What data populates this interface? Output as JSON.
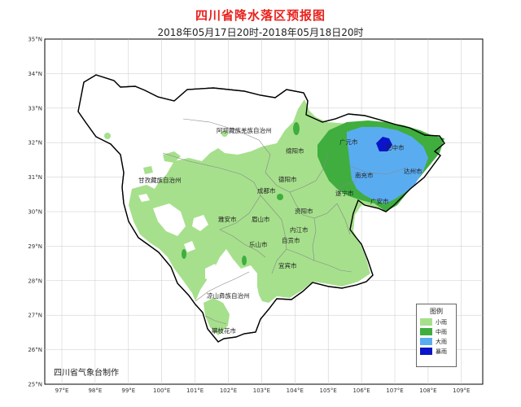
{
  "title": "四川省降水落区预报图",
  "subtitle": "2018年05月17日20时-2018年05月18日20时",
  "producer": "四川省气象台制作",
  "legend": {
    "title": "图例",
    "items": [
      {
        "label": "小雨",
        "color": "#a6e08c"
      },
      {
        "label": "中雨",
        "color": "#3fae3f"
      },
      {
        "label": "大雨",
        "color": "#5aacf0"
      },
      {
        "label": "暴雨",
        "color": "#0a14c8"
      }
    ]
  },
  "axes": {
    "lat_labels": [
      "35°N",
      "34°N",
      "33°N",
      "32°N",
      "31°N",
      "30°N",
      "29°N",
      "28°N",
      "27°N",
      "26°N",
      "25°N"
    ],
    "lon_labels": [
      "97°E",
      "98°E",
      "99°E",
      "100°E",
      "101°E",
      "102°E",
      "103°E",
      "104°E",
      "105°E",
      "106°E",
      "107°E",
      "108°E",
      "109°E"
    ]
  },
  "places": {
    "aba": "阿坝藏族羌族自治州",
    "ganzi": "甘孜藏族自治州",
    "liangshan": "凉山彝族自治州",
    "guangyuan": "广元市",
    "bazhong": "巴中市",
    "mianyang": "绵阳市",
    "deyang": "德阳市",
    "nanchong": "南充市",
    "dazhou": "达州市",
    "chengdu": "成都市",
    "suining": "遂宁市",
    "guangan": "广安市",
    "yaan": "雅安市",
    "meishan": "眉山市",
    "ziyang": "资阳市",
    "neijiang": "内江市",
    "leshan": "乐山市",
    "zigong": "自贡市",
    "yibin": "宜宾市",
    "panzhihua": "攀枝花市"
  },
  "colors": {
    "background": "#ffffff",
    "map_frame": "#000000",
    "grid": "#c8c8c8",
    "title": "#e8211c",
    "province_outline": "#000000",
    "inner_boundaries": "#888888"
  }
}
